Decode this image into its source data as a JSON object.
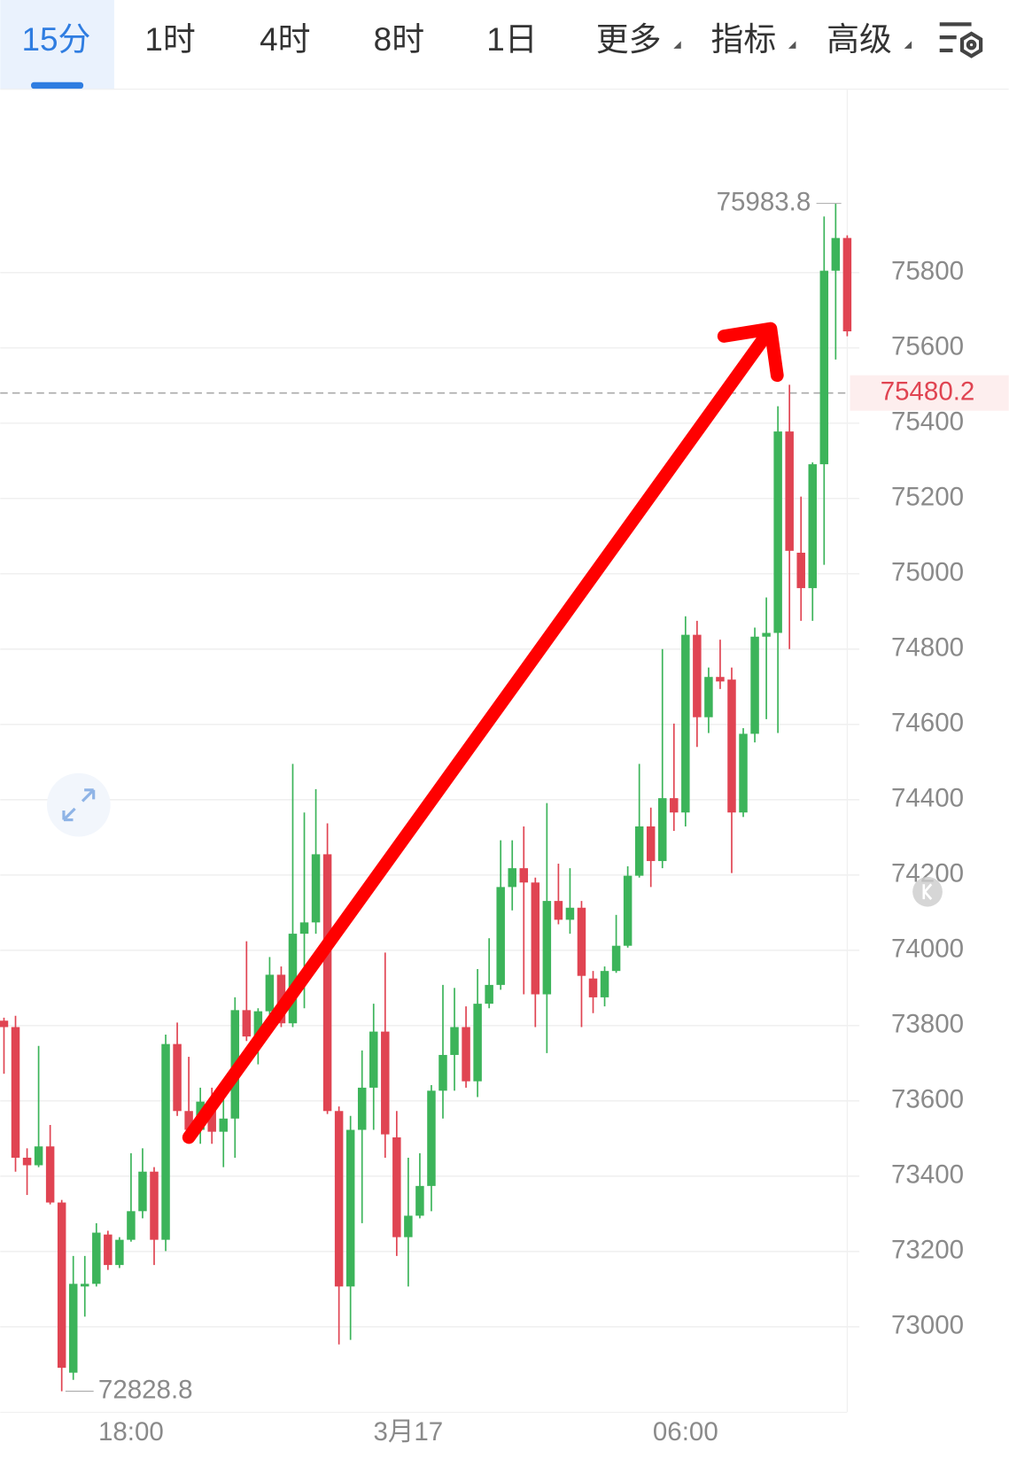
{
  "tabs": [
    "15分",
    "1时",
    "4时",
    "8时",
    "1日",
    "更多",
    "指标",
    "高级"
  ],
  "selected_tab": 0,
  "chart_data": {
    "type": "candlestick",
    "categories": [
      null,
      null,
      null,
      null,
      null,
      null,
      null,
      null,
      null,
      null,
      null,
      "18:00",
      null,
      null,
      null,
      null,
      null,
      null,
      null,
      null,
      null,
      null,
      null,
      null,
      null,
      null,
      null,
      null,
      null,
      null,
      null,
      null,
      null,
      null,
      null,
      "3月17",
      null,
      null,
      null,
      null,
      null,
      null,
      null,
      null,
      null,
      null,
      null,
      null,
      null,
      null,
      null,
      null,
      null,
      null,
      null,
      null,
      null,
      null,
      null,
      "06:00",
      null,
      null,
      null,
      null,
      null,
      null,
      null,
      null,
      null,
      null,
      null,
      null,
      null,
      null
    ],
    "open": [
      73813,
      73796,
      73449,
      73429,
      73479,
      73330,
      72878,
      73107,
      73114,
      73245,
      73164,
      73231,
      73307,
      73412,
      73231,
      73751,
      73573,
      73523,
      73585,
      73518,
      73553,
      73841,
      73771,
      73838,
      73935,
      73806,
      74044,
      74074,
      74255,
      73573,
      73107,
      73523,
      73635,
      73784,
      73503,
      73238,
      73295,
      73374,
      73627,
      73722,
      73796,
      73652,
      73858,
      73908,
      74168,
      74218,
      74180,
      73883,
      74131,
      74081,
      74113,
      73925,
      73875,
      73945,
      74012,
      74198,
      74329,
      74237,
      74404,
      74366,
      74838,
      74619,
      74726,
      74719,
      74366,
      74575,
      74833,
      74843,
      75378,
      75056,
      74962,
      75291,
      75805,
      75892
    ],
    "high": [
      73821,
      73826,
      73474,
      73746,
      73536,
      73337,
      73188,
      73188,
      73275,
      73255,
      73238,
      73461,
      73474,
      73424,
      73776,
      73808,
      73717,
      73635,
      73635,
      73635,
      73875,
      74024,
      73846,
      73982,
      73957,
      74495,
      74366,
      74428,
      74337,
      73585,
      73560,
      73734,
      73858,
      73994,
      73573,
      73449,
      73461,
      73642,
      73908,
      73900,
      73851,
      73950,
      74032,
      74292,
      74292,
      74329,
      74193,
      74391,
      74230,
      74218,
      74131,
      73945,
      73957,
      74094,
      74223,
      74495,
      74379,
      74800,
      74602,
      74887,
      74875,
      74751,
      74825,
      74751,
      74590,
      74857,
      74937,
      75445,
      75502,
      75205,
      75296,
      75949,
      75983.8,
      75899
    ],
    "low": [
      73672,
      73412,
      73350,
      73424,
      73325,
      72828.8,
      72859,
      73027,
      73107,
      73151,
      73156,
      73226,
      73288,
      73164,
      73201,
      73560,
      73498,
      73486,
      73486,
      73424,
      73449,
      73759,
      73697,
      73821,
      73796,
      73796,
      73846,
      74044,
      73565,
      72953,
      72965,
      73275,
      73523,
      73449,
      73188,
      73107,
      73288,
      73307,
      73553,
      73627,
      73635,
      73610,
      73846,
      73895,
      74106,
      73883,
      73796,
      73727,
      74069,
      74044,
      73796,
      73833,
      73851,
      73940,
      74007,
      74193,
      74168,
      74218,
      74317,
      74329,
      74540,
      74577,
      74694,
      74205,
      74354,
      74552,
      74614,
      74577,
      74800,
      74875,
      74875,
      75024,
      75569,
      75631
    ],
    "close": [
      73796,
      73449,
      73429,
      73479,
      73330,
      72891,
      73114,
      73114,
      73250,
      73164,
      73231,
      73307,
      73412,
      73231,
      73751,
      73573,
      73523,
      73598,
      73518,
      73553,
      73841,
      73771,
      73838,
      73935,
      73806,
      74044,
      74074,
      74255,
      73573,
      73107,
      73523,
      73635,
      73784,
      73511,
      73238,
      73295,
      73374,
      73627,
      73722,
      73796,
      73652,
      73858,
      73908,
      74168,
      74218,
      74180,
      73883,
      74131,
      74081,
      74113,
      73932,
      73875,
      73945,
      74012,
      74198,
      74329,
      74237,
      74404,
      74366,
      74838,
      74619,
      74726,
      74714,
      74366,
      74575,
      74833,
      74843,
      75378,
      75061,
      74962,
      75291,
      75805,
      75892,
      75644
    ],
    "up_color": "#3cb45a",
    "down_color": "#e04452",
    "current_price": 75480.2,
    "ylim": [
      72774,
      76286
    ],
    "yticks": [
      73000,
      73200,
      73400,
      73600,
      73800,
      74000,
      74200,
      74400,
      74600,
      74800,
      75000,
      75200,
      75400,
      75600,
      75800
    ],
    "grid": true
  }
}
